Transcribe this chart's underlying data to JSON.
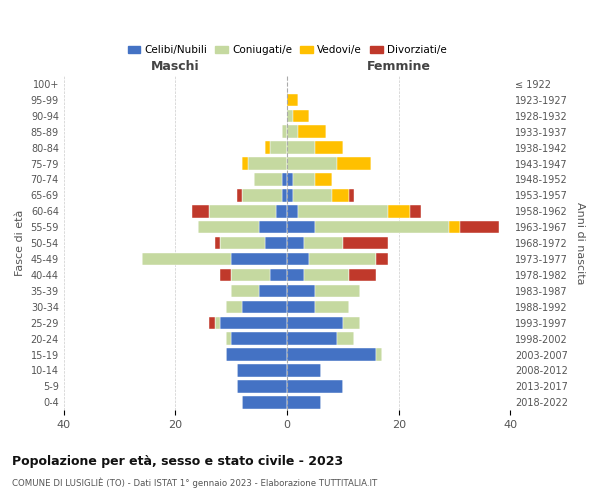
{
  "age_groups": [
    "0-4",
    "5-9",
    "10-14",
    "15-19",
    "20-24",
    "25-29",
    "30-34",
    "35-39",
    "40-44",
    "45-49",
    "50-54",
    "55-59",
    "60-64",
    "65-69",
    "70-74",
    "75-79",
    "80-84",
    "85-89",
    "90-94",
    "95-99",
    "100+"
  ],
  "birth_years": [
    "2018-2022",
    "2013-2017",
    "2008-2012",
    "2003-2007",
    "1998-2002",
    "1993-1997",
    "1988-1992",
    "1983-1987",
    "1978-1982",
    "1973-1977",
    "1968-1972",
    "1963-1967",
    "1958-1962",
    "1953-1957",
    "1948-1952",
    "1943-1947",
    "1938-1942",
    "1933-1937",
    "1928-1932",
    "1923-1927",
    "≤ 1922"
  ],
  "males": {
    "celibi": [
      8,
      9,
      9,
      11,
      10,
      12,
      8,
      5,
      3,
      10,
      4,
      5,
      2,
      1,
      1,
      0,
      0,
      0,
      0,
      0,
      0
    ],
    "coniugati": [
      0,
      0,
      0,
      0,
      1,
      1,
      3,
      5,
      7,
      16,
      8,
      11,
      12,
      7,
      5,
      7,
      3,
      1,
      0,
      0,
      0
    ],
    "vedovi": [
      0,
      0,
      0,
      0,
      0,
      0,
      0,
      0,
      0,
      0,
      0,
      0,
      0,
      0,
      0,
      1,
      1,
      0,
      0,
      0,
      0
    ],
    "divorziati": [
      0,
      0,
      0,
      0,
      0,
      1,
      0,
      0,
      2,
      0,
      1,
      0,
      3,
      1,
      0,
      0,
      0,
      0,
      0,
      0,
      0
    ]
  },
  "females": {
    "nubili": [
      6,
      10,
      6,
      16,
      9,
      10,
      5,
      5,
      3,
      4,
      3,
      5,
      2,
      1,
      1,
      0,
      0,
      0,
      0,
      0,
      0
    ],
    "coniugate": [
      0,
      0,
      0,
      1,
      3,
      3,
      6,
      8,
      8,
      12,
      7,
      24,
      16,
      7,
      4,
      9,
      5,
      2,
      1,
      0,
      0
    ],
    "vedove": [
      0,
      0,
      0,
      0,
      0,
      0,
      0,
      0,
      0,
      0,
      0,
      2,
      4,
      3,
      3,
      6,
      5,
      5,
      3,
      2,
      0
    ],
    "divorziate": [
      0,
      0,
      0,
      0,
      0,
      0,
      0,
      0,
      5,
      2,
      8,
      7,
      2,
      1,
      0,
      0,
      0,
      0,
      0,
      0,
      0
    ]
  },
  "colors": {
    "celibi_nubili": "#4472c4",
    "coniugati": "#c5d9a0",
    "vedovi": "#ffc000",
    "divorziati": "#c0392b"
  },
  "xlim": [
    -40,
    40
  ],
  "ylabel_left": "Fasce di età",
  "ylabel_right": "Anni di nascita",
  "title": "Popolazione per età, sesso e stato civile - 2023",
  "subtitle": "COMUNE DI LUSIGLIÈ (TO) - Dati ISTAT 1° gennaio 2023 - Elaborazione TUTTITALIA.IT",
  "legend_labels": [
    "Celibi/Nubili",
    "Coniugati/e",
    "Vedovi/e",
    "Divorziati/e"
  ],
  "maschi_label": "Maschi",
  "femmine_label": "Femmine",
  "background_color": "#ffffff",
  "grid_color": "#cccccc"
}
